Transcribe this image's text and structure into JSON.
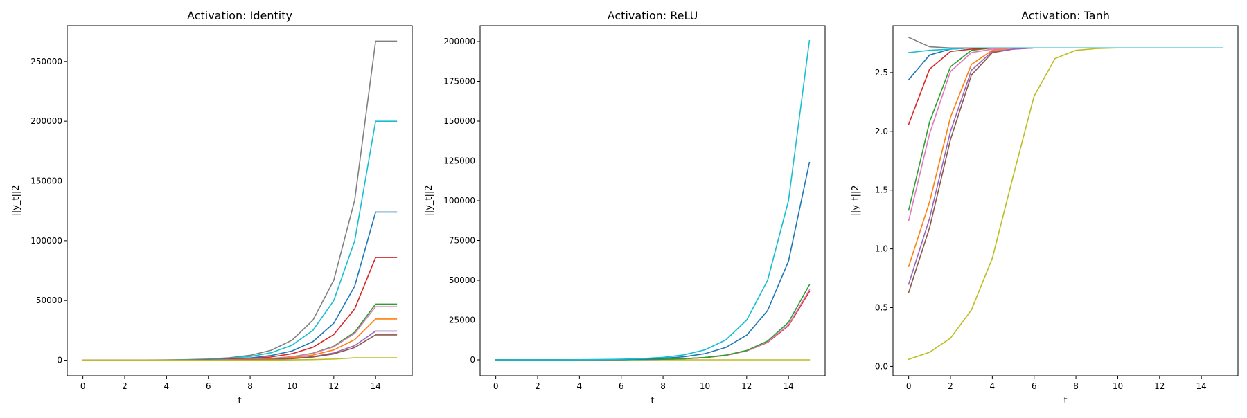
{
  "chart_data": [
    {
      "type": "line",
      "title": "Activation: Identity",
      "xlabel": "t",
      "ylabel": "||y_t||2",
      "xlim": [
        -0.75,
        15.75
      ],
      "ylim": [
        -13000,
        280000
      ],
      "xticks": [
        0,
        2,
        4,
        6,
        8,
        10,
        12,
        14
      ],
      "yticks": [
        0,
        50000,
        100000,
        150000,
        200000,
        250000
      ],
      "grid": false,
      "x": [
        0,
        1,
        2,
        3,
        4,
        5,
        6,
        7,
        8,
        9,
        10,
        11,
        12,
        13,
        14,
        15
      ],
      "series": [
        {
          "color": "#7f7f7f",
          "values": [
            15,
            30,
            60,
            120,
            240,
            500,
            1000,
            2000,
            4100,
            8300,
            16700,
            33500,
            67000,
            134000,
            267000,
            267000
          ]
        },
        {
          "color": "#17becf",
          "values": [
            10,
            25,
            50,
            100,
            200,
            390,
            780,
            1560,
            3100,
            6200,
            12500,
            25000,
            50000,
            100000,
            200000,
            200000
          ]
        },
        {
          "color": "#1f77b4",
          "values": [
            8,
            15,
            30,
            60,
            120,
            240,
            480,
            960,
            1900,
            3900,
            7700,
            15500,
            31000,
            62000,
            124000,
            124000
          ]
        },
        {
          "color": "#d62728",
          "values": [
            5,
            10,
            21,
            42,
            84,
            170,
            340,
            670,
            1350,
            2700,
            5400,
            10800,
            21500,
            43000,
            86000,
            86000
          ]
        },
        {
          "color": "#2ca02c",
          "values": [
            3,
            6,
            12,
            23,
            46,
            92,
            180,
            370,
            740,
            1470,
            2900,
            5900,
            11700,
            23500,
            47000,
            47000
          ]
        },
        {
          "color": "#e377c2",
          "values": [
            3,
            6,
            11,
            22,
            44,
            88,
            175,
            350,
            700,
            1400,
            2800,
            5600,
            11200,
            22400,
            44800,
            44800
          ]
        },
        {
          "color": "#ff7f0e",
          "values": [
            2,
            4,
            8,
            17,
            34,
            68,
            135,
            270,
            540,
            1080,
            2150,
            4300,
            8600,
            17200,
            34500,
            34500
          ]
        },
        {
          "color": "#9467bd",
          "values": [
            2,
            3,
            6,
            12,
            24,
            47,
            95,
            190,
            380,
            760,
            1520,
            3000,
            6100,
            12200,
            24400,
            24400
          ]
        },
        {
          "color": "#8c564b",
          "values": [
            1,
            3,
            5,
            10,
            21,
            42,
            83,
            165,
            330,
            660,
            1320,
            2650,
            5300,
            10600,
            21200,
            21200
          ]
        },
        {
          "color": "#bcbd22",
          "values": [
            0,
            1,
            1,
            2,
            4,
            8,
            16,
            32,
            64,
            130,
            260,
            520,
            1000,
            2000,
            2000,
            2000
          ]
        }
      ]
    },
    {
      "type": "line",
      "title": "Activation: ReLU",
      "xlabel": "t",
      "ylabel": "||y_t||2",
      "xlim": [
        -0.75,
        15.75
      ],
      "ylim": [
        -10000,
        210000
      ],
      "xticks": [
        0,
        2,
        4,
        6,
        8,
        10,
        12,
        14
      ],
      "yticks": [
        0,
        25000,
        50000,
        75000,
        100000,
        125000,
        150000,
        175000,
        200000
      ],
      "grid": false,
      "x": [
        0,
        1,
        2,
        3,
        4,
        5,
        6,
        7,
        8,
        9,
        10,
        11,
        12,
        13,
        14,
        15
      ],
      "series": [
        {
          "color": "#bcbd22",
          "values": [
            0,
            0,
            0,
            0,
            0,
            0,
            0,
            0,
            0,
            0,
            0,
            0,
            0,
            0,
            0,
            0
          ]
        },
        {
          "color": "#ff7f0e",
          "values": [
            1,
            3,
            6,
            11,
            22,
            44,
            88,
            175,
            350,
            700,
            1400,
            2800,
            5600,
            11000,
            21500,
            43000
          ]
        },
        {
          "color": "#d62728",
          "values": [
            1,
            3,
            6,
            11,
            22,
            44,
            88,
            175,
            350,
            700,
            1400,
            2800,
            5600,
            11000,
            21500,
            43000
          ]
        },
        {
          "color": "#e377c2",
          "values": [
            1,
            3,
            6,
            11,
            22,
            44,
            88,
            175,
            350,
            700,
            1400,
            2800,
            5600,
            11200,
            22000,
            44000
          ]
        },
        {
          "color": "#2ca02c",
          "values": [
            1,
            3,
            6,
            12,
            24,
            47,
            94,
            187,
            370,
            740,
            1480,
            2950,
            5900,
            11800,
            23600,
            47200
          ]
        },
        {
          "color": "#1f77b4",
          "values": [
            4,
            8,
            15,
            30,
            60,
            121,
            242,
            484,
            970,
            1940,
            3880,
            7760,
            15500,
            31000,
            62000,
            124000
          ]
        },
        {
          "color": "#17becf",
          "values": [
            6,
            12,
            24,
            49,
            98,
            196,
            391,
            782,
            1560,
            3130,
            6250,
            12500,
            25000,
            50000,
            100000,
            200500
          ]
        }
      ]
    },
    {
      "type": "line",
      "title": "Activation: Tanh",
      "xlabel": "t",
      "ylabel": "||y_t||2",
      "xlim": [
        -0.75,
        15.75
      ],
      "ylim": [
        -0.08,
        2.9
      ],
      "xticks": [
        0,
        2,
        4,
        6,
        8,
        10,
        12,
        14
      ],
      "yticks": [
        0.0,
        0.5,
        1.0,
        1.5,
        2.0,
        2.5
      ],
      "grid": false,
      "x": [
        0,
        1,
        2,
        3,
        4,
        5,
        6,
        7,
        8,
        9,
        10,
        11,
        12,
        13,
        14,
        15
      ],
      "series": [
        {
          "color": "#bcbd22",
          "values": [
            0.06,
            0.12,
            0.24,
            0.48,
            0.92,
            1.62,
            2.3,
            2.62,
            2.69,
            2.705,
            2.71,
            2.71,
            2.71,
            2.71,
            2.71,
            2.71
          ]
        },
        {
          "color": "#8c564b",
          "values": [
            0.63,
            1.18,
            1.93,
            2.48,
            2.67,
            2.7,
            2.71,
            2.71,
            2.71,
            2.71,
            2.71,
            2.71,
            2.71,
            2.71,
            2.71,
            2.71
          ]
        },
        {
          "color": "#9467bd",
          "values": [
            0.7,
            1.26,
            2.0,
            2.52,
            2.68,
            2.7,
            2.71,
            2.71,
            2.71,
            2.71,
            2.71,
            2.71,
            2.71,
            2.71,
            2.71,
            2.71
          ]
        },
        {
          "color": "#ff7f0e",
          "values": [
            0.85,
            1.4,
            2.12,
            2.57,
            2.69,
            2.71,
            2.71,
            2.71,
            2.71,
            2.71,
            2.71,
            2.71,
            2.71,
            2.71,
            2.71,
            2.71
          ]
        },
        {
          "color": "#e377c2",
          "values": [
            1.24,
            1.98,
            2.51,
            2.67,
            2.7,
            2.71,
            2.71,
            2.71,
            2.71,
            2.71,
            2.71,
            2.71,
            2.71,
            2.71,
            2.71,
            2.71
          ]
        },
        {
          "color": "#2ca02c",
          "values": [
            1.33,
            2.08,
            2.55,
            2.69,
            2.71,
            2.71,
            2.71,
            2.71,
            2.71,
            2.71,
            2.71,
            2.71,
            2.71,
            2.71,
            2.71,
            2.71
          ]
        },
        {
          "color": "#d62728",
          "values": [
            2.06,
            2.53,
            2.68,
            2.7,
            2.71,
            2.71,
            2.71,
            2.71,
            2.71,
            2.71,
            2.71,
            2.71,
            2.71,
            2.71,
            2.71,
            2.71
          ]
        },
        {
          "color": "#1f77b4",
          "values": [
            2.44,
            2.65,
            2.7,
            2.71,
            2.71,
            2.71,
            2.71,
            2.71,
            2.71,
            2.71,
            2.71,
            2.71,
            2.71,
            2.71,
            2.71,
            2.71
          ]
        },
        {
          "color": "#7f7f7f",
          "values": [
            2.8,
            2.72,
            2.71,
            2.71,
            2.71,
            2.71,
            2.71,
            2.71,
            2.71,
            2.71,
            2.71,
            2.71,
            2.71,
            2.71,
            2.71,
            2.71
          ]
        },
        {
          "color": "#17becf",
          "values": [
            2.67,
            2.69,
            2.7,
            2.71,
            2.71,
            2.71,
            2.71,
            2.71,
            2.71,
            2.71,
            2.71,
            2.71,
            2.71,
            2.71,
            2.71,
            2.71
          ]
        }
      ]
    }
  ]
}
